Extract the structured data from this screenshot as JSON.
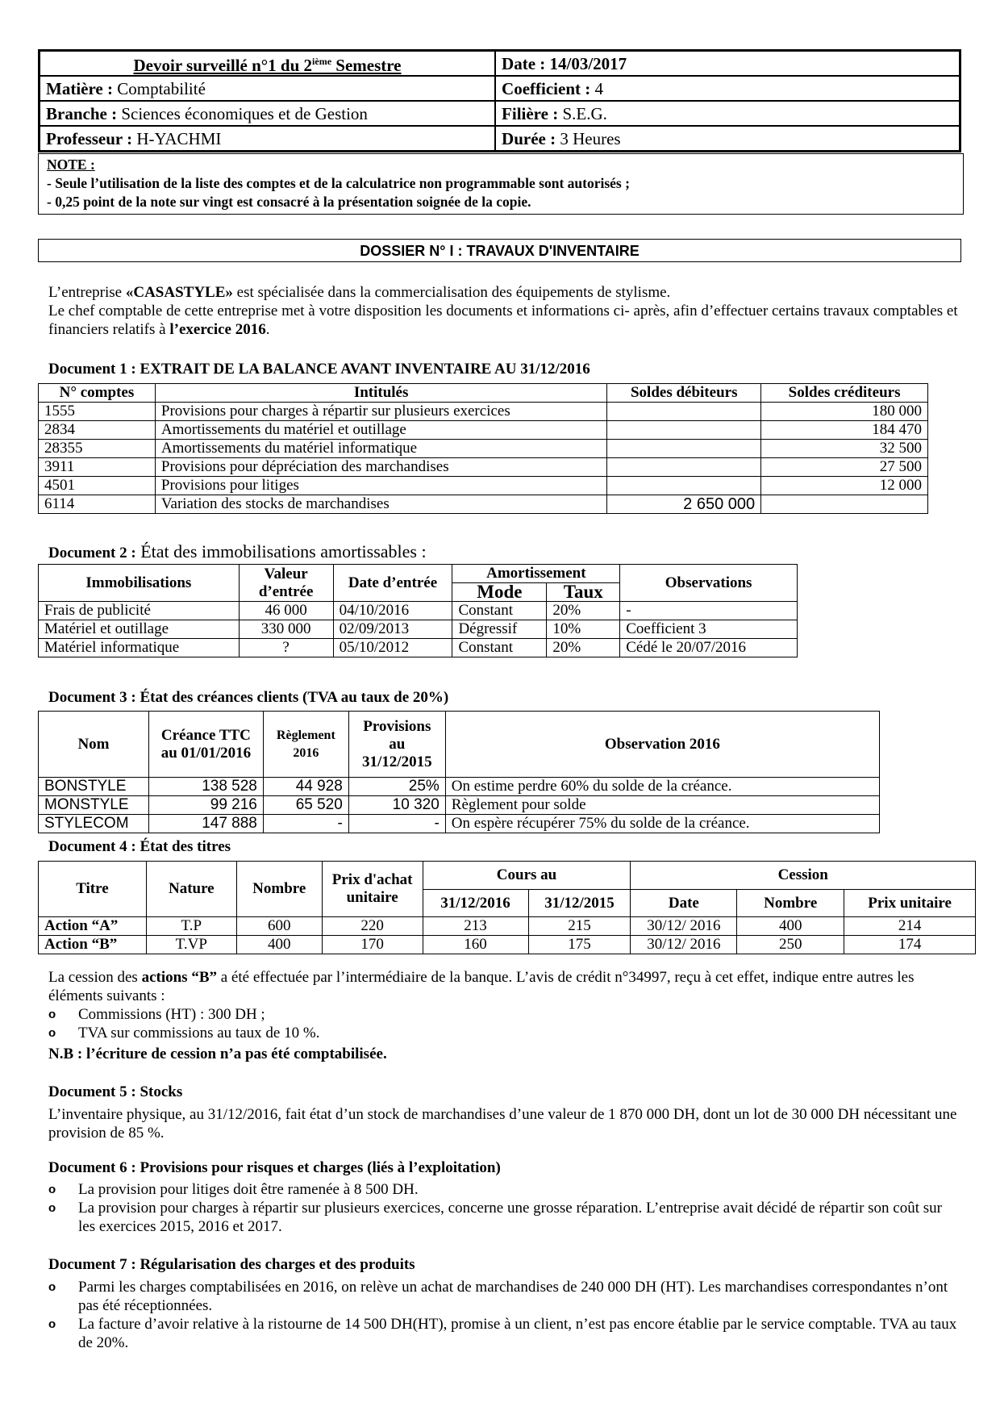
{
  "header": {
    "title": "Devoir surveillé n°1 du 2",
    "title_sup": "ième",
    "title_end": " Semestre",
    "date_label": "Date : 14/03/2017",
    "matiere_label": "Matière :",
    "matiere": " Comptabilité",
    "coef_label": "Coefficient :",
    "coef": " 4",
    "branche_label": "Branche :",
    "branche": " Sciences économiques et de Gestion",
    "filiere_label": "Filière :",
    "filiere": " S.E.G.",
    "prof_label": "Professeur :",
    "prof": " H-YACHMI",
    "duree_label": "Durée :",
    "duree": " 3 Heures"
  },
  "note": {
    "title": "NOTE :",
    "items": [
      "-   Seule l’utilisation de la liste des comptes et de la calculatrice non programmable sont autorisés ;",
      "-   0,25 point de la note sur vingt est consacré à la présentation soignée de la copie."
    ]
  },
  "dossier_title": "DOSSIER N° I : TRAVAUX D'INVENTAIRE",
  "intro": {
    "l1a": "L’entreprise ",
    "l1b": "«CASASTYLE»",
    "l1c": " est spécialisée dans la commercialisation des équipements de stylisme.",
    "l2a": "Le chef comptable de cette entreprise met à votre disposition les documents et informations ci- après, afin d’effectuer certains travaux comptables et financiers relatifs à ",
    "l2b": "l’exercice 2016",
    "l2c": "."
  },
  "doc1": {
    "title": "Document 1 : EXTRAIT DE LA BALANCE AVANT INVENTAIRE AU 31/12/2016",
    "headers": [
      "N° comptes",
      "Intitulés",
      "Soldes débiteurs",
      "Soldes créditeurs"
    ],
    "rows": [
      [
        "1555",
        "Provisions pour charges à répartir sur plusieurs exercices",
        "",
        "180 000"
      ],
      [
        "2834",
        "Amortissements du matériel et outillage",
        "",
        "184  470"
      ],
      [
        "28355",
        "Amortissements du matériel informatique",
        "",
        "32 500"
      ],
      [
        "3911",
        "Provisions pour dépréciation des marchandises",
        "",
        "27 500"
      ],
      [
        "4501",
        "Provisions pour litiges",
        "",
        "12 000"
      ],
      [
        "6114",
        "Variation des stocks de marchandises",
        "2 650 000",
        ""
      ]
    ]
  },
  "doc2": {
    "title_bold": "Document 2 :",
    "title": " État des immobilisations amortissables :",
    "headers": {
      "immo": "Immobilisations",
      "valeur": "Valeur d’entrée",
      "date": "Date d’entrée",
      "amort": "Amortissement",
      "mode": "Mode",
      "taux": "Taux",
      "obs": "Observations"
    },
    "rows": [
      [
        "Frais de publicité",
        "46 000",
        "04/10/2016",
        "Constant",
        "20%",
        "-"
      ],
      [
        "Matériel et outillage",
        "330 000",
        "02/09/2013",
        "Dégressif",
        "10%",
        "Coefficient 3"
      ],
      [
        "Matériel informatique",
        "?",
        "05/10/2012",
        "Constant",
        "20%",
        "Cédé le 20/07/2016"
      ]
    ]
  },
  "doc3": {
    "title": "Document 3 : État des créances clients (TVA au taux de 20%)",
    "headers": [
      "Nom",
      "Créance TTC au 01/01/2016",
      "Règlement 2016",
      "Provisions au 31/12/2015",
      "Observation  2016"
    ],
    "rows": [
      [
        "BONSTYLE",
        "138 528",
        "44 928",
        "25%",
        "On estime perdre 60% du solde de la créance."
      ],
      [
        "MONSTYLE",
        "99 216",
        "65 520",
        "10 320",
        "Règlement pour solde"
      ],
      [
        "STYLECOM",
        "147 888",
        "-",
        "-",
        "On espère récupérer 75% du solde de la créance."
      ]
    ]
  },
  "doc4": {
    "title": "Document 4 : État des titres",
    "headers": {
      "titre": "Titre",
      "nature": "Nature",
      "nombre": "Nombre",
      "prix": "Prix d'achat unitaire",
      "cours": "Cours au",
      "c2016": "31/12/2016",
      "c2015": "31/12/2015",
      "cession": "Cession",
      "date": "Date",
      "cnombre": "Nombre",
      "pu": "Prix unitaire"
    },
    "rows": [
      [
        "Action “A”",
        "T.P",
        "600",
        "220",
        "213",
        "215",
        "30/12/ 2016",
        "400",
        "214"
      ],
      [
        "Action “B”",
        "T.VP",
        "400",
        "170",
        "160",
        "175",
        "30/12/ 2016",
        "250",
        "174"
      ]
    ],
    "text_a": "La cession des ",
    "text_b": "actions “B”",
    "text_c": " a été effectuée par l’intermédiaire de la banque. L’avis de crédit  n°34997, reçu à cet effet, indique entre autres les éléments suivants :",
    "bullets": [
      "Commissions (HT) : 300 DH ;",
      " TVA sur commissions au taux de 10 %."
    ],
    "nb": "N.B : l’écriture de cession n’a pas été comptabilisée."
  },
  "doc5": {
    "title": "Document 5 : Stocks",
    "text": "L’inventaire physique, au 31/12/2016, fait état d’un stock de marchandises d’une valeur de 1 870 000 DH, dont un lot de 30 000 DH nécessitant une provision de 85 %."
  },
  "doc6": {
    "title": "Document 6 : Provisions pour risques et charges (liés à l’exploitation)",
    "bullets": [
      "La provision pour litiges doit être ramenée à 8 500 DH.",
      "La provision pour charges à répartir sur plusieurs exercices, concerne une grosse réparation. L’entreprise avait décidé de répartir son coût sur les exercices 2015, 2016 et 2017."
    ]
  },
  "doc7": {
    "title": "Document 7 : Régularisation des charges et des produits",
    "bullets": [
      "Parmi les charges comptabilisées en 2016, on relève un achat de marchandises de 240 000 DH (HT). Les marchandises correspondantes n’ont pas été réceptionnées.",
      "La facture d’avoir relative à la ristourne de 14 500 DH(HT), promise à  un client, n’est pas encore établie par le service comptable. TVA au taux de 20%."
    ]
  }
}
